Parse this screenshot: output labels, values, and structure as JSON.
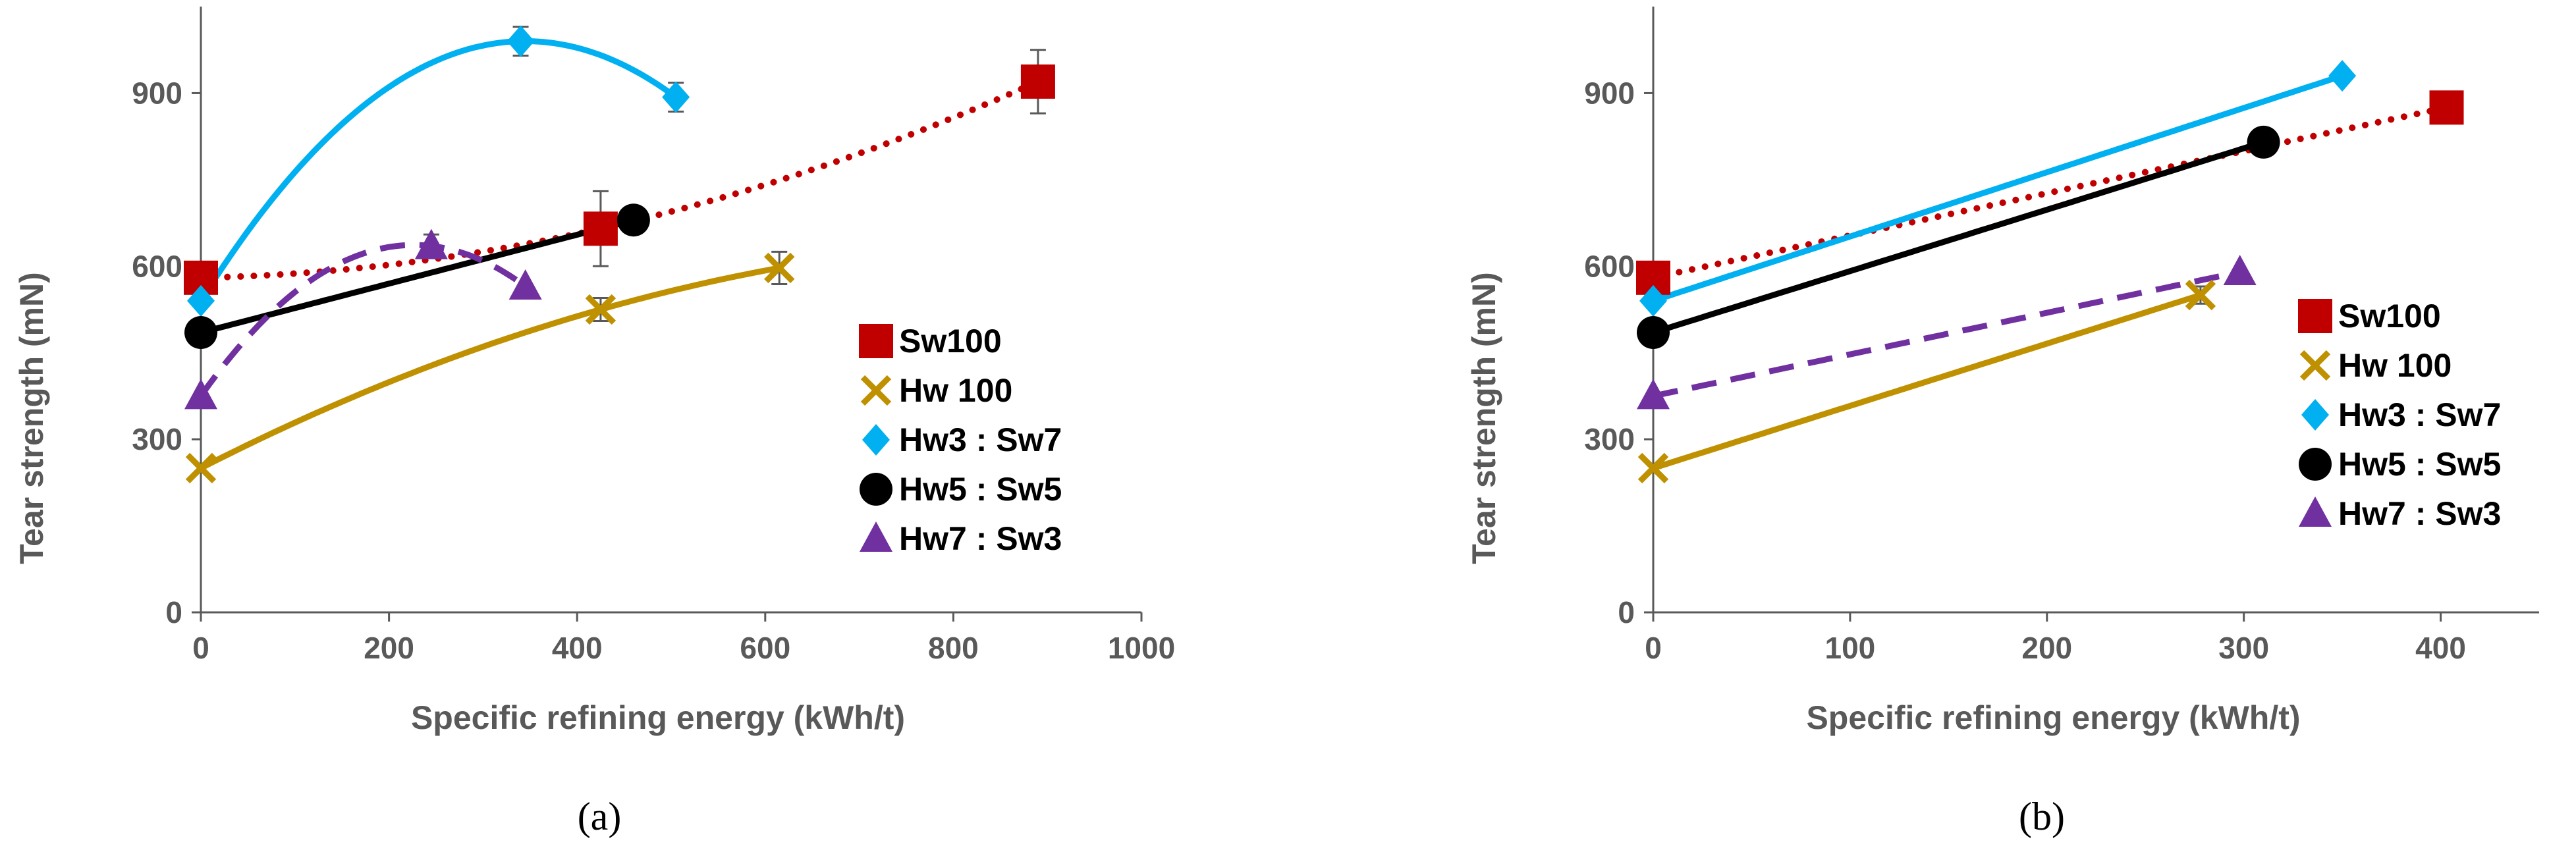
{
  "chart_data": [
    {
      "type": "scatter",
      "panel_label": "(a)",
      "xlabel": "Specific refining energy (kWh/t)",
      "ylabel": "Tear strength (mN)",
      "xlim": [
        0,
        1000
      ],
      "ylim": [
        0,
        1050
      ],
      "xticks": [
        0,
        200,
        400,
        600,
        800,
        1000
      ],
      "yticks": [
        0,
        300,
        600,
        900
      ],
      "grid": false,
      "legend_position": "right",
      "series": [
        {
          "name": "Sw100",
          "color": "#C00000",
          "marker": "square",
          "line": "dotted",
          "x": [
            0,
            425,
            890
          ],
          "y": [
            580,
            665,
            920
          ],
          "err": [
            0,
            65,
            55
          ]
        },
        {
          "name": "Hw 100",
          "color": "#BF9000",
          "marker": "x",
          "line": "solid",
          "x": [
            0,
            425,
            615
          ],
          "y": [
            250,
            525,
            597
          ],
          "err": [
            0,
            20,
            28
          ]
        },
        {
          "name": "Hw3 : Sw7",
          "color": "#00B0F0",
          "marker": "diamond",
          "line": "solid",
          "x": [
            0,
            340,
            505
          ],
          "y": [
            540,
            990,
            893
          ],
          "err": [
            0,
            25,
            25
          ]
        },
        {
          "name": "Hw5 : Sw5",
          "color": "#000000",
          "marker": "circle",
          "line": "solid",
          "x": [
            0,
            460
          ],
          "y": [
            485,
            680
          ],
          "err": [
            0,
            0
          ]
        },
        {
          "name": "Hw7 : Sw3",
          "color": "#7030A0",
          "marker": "triangle",
          "line": "dashed",
          "x": [
            0,
            245,
            345
          ],
          "y": [
            375,
            635,
            565
          ],
          "err": [
            0,
            20,
            0
          ]
        }
      ]
    },
    {
      "type": "scatter",
      "panel_label": "(b)",
      "xlabel": "Specific refining energy (kWh/t)",
      "ylabel": "Tear strength (mN)",
      "xlim": [
        0,
        450
      ],
      "ylim": [
        0,
        1050
      ],
      "xticks": [
        0,
        100,
        200,
        300,
        400
      ],
      "yticks": [
        0,
        300,
        600,
        900
      ],
      "grid": false,
      "legend_position": "right",
      "series": [
        {
          "name": "Sw100",
          "color": "#C00000",
          "marker": "square",
          "line": "dotted",
          "x": [
            0,
            403
          ],
          "y": [
            580,
            875
          ],
          "err": [
            0,
            0
          ]
        },
        {
          "name": "Hw 100",
          "color": "#BF9000",
          "marker": "x",
          "line": "solid",
          "x": [
            0,
            278
          ],
          "y": [
            250,
            550
          ],
          "err": [
            0,
            15
          ]
        },
        {
          "name": "Hw3 : Sw7",
          "color": "#00B0F0",
          "marker": "diamond",
          "line": "solid",
          "x": [
            0,
            350
          ],
          "y": [
            540,
            930
          ],
          "err": [
            0,
            0
          ]
        },
        {
          "name": "Hw5 : Sw5",
          "color": "#000000",
          "marker": "circle",
          "line": "solid",
          "x": [
            0,
            310
          ],
          "y": [
            485,
            815
          ],
          "err": [
            0,
            0
          ]
        },
        {
          "name": "Hw7 : Sw3",
          "color": "#7030A0",
          "marker": "triangle",
          "line": "dashed",
          "x": [
            0,
            298
          ],
          "y": [
            375,
            590
          ],
          "err": [
            0,
            0
          ]
        }
      ]
    }
  ]
}
